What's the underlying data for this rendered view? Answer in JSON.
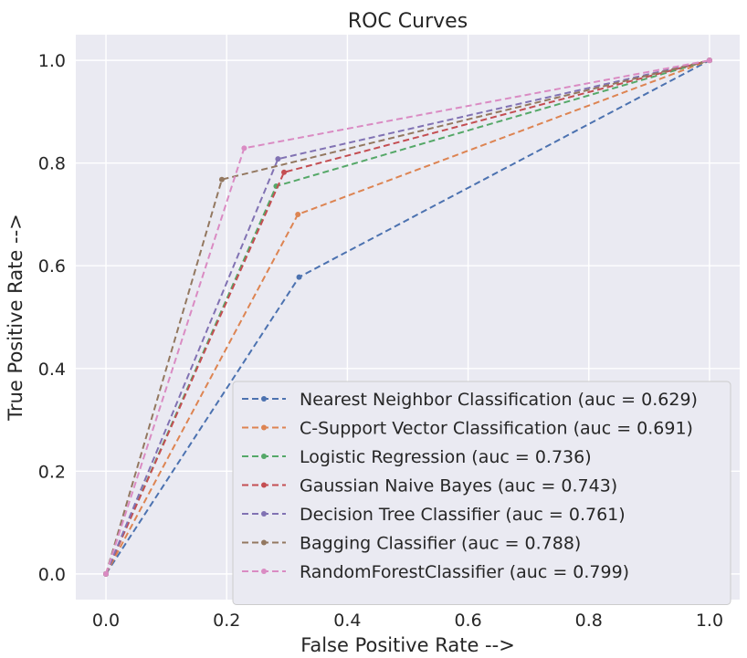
{
  "chart_data": {
    "type": "line",
    "title": "ROC Curves",
    "xlabel": "False Positive Rate -->",
    "ylabel": "True Positive Rate -->",
    "xlim": [
      -0.05,
      1.05
    ],
    "ylim": [
      -0.05,
      1.05
    ],
    "grid": true,
    "legend_position": "bottom-right",
    "xticks": [
      "0.0",
      "0.2",
      "0.4",
      "0.6",
      "0.8",
      "1.0"
    ],
    "xtick_values": [
      0.0,
      0.2,
      0.4,
      0.6,
      0.8,
      1.0
    ],
    "yticks": [
      "0.0",
      "0.2",
      "0.4",
      "0.6",
      "0.8",
      "1.0"
    ],
    "ytick_values": [
      0.0,
      0.2,
      0.4,
      0.6,
      0.8,
      1.0
    ],
    "series": [
      {
        "name": "Nearest Neighbor Classification (auc = 0.629)",
        "color": "#4c72b0",
        "x": [
          0.0,
          0.32,
          1.0
        ],
        "y": [
          0.0,
          0.578,
          1.0
        ]
      },
      {
        "name": "C-Support Vector Classification (auc = 0.691)",
        "color": "#dd8452",
        "x": [
          0.0,
          0.318,
          1.0
        ],
        "y": [
          0.0,
          0.7,
          1.0
        ]
      },
      {
        "name": "Logistic Regression (auc = 0.736)",
        "color": "#55a868",
        "x": [
          0.0,
          0.282,
          1.0
        ],
        "y": [
          0.0,
          0.755,
          1.0
        ]
      },
      {
        "name": "Gaussian Naive Bayes (auc = 0.743)",
        "color": "#c44e52",
        "x": [
          0.0,
          0.295,
          1.0
        ],
        "y": [
          0.0,
          0.782,
          1.0
        ]
      },
      {
        "name": "Decision Tree Classifier (auc = 0.761)",
        "color": "#8172b3",
        "x": [
          0.0,
          0.285,
          1.0
        ],
        "y": [
          0.0,
          0.808,
          1.0
        ]
      },
      {
        "name": "Bagging Classifier (auc = 0.788)",
        "color": "#937860",
        "x": [
          0.0,
          0.192,
          1.0
        ],
        "y": [
          0.0,
          0.768,
          1.0
        ]
      },
      {
        "name": "RandomForestClassifier (auc = 0.799)",
        "color": "#da8bc3",
        "x": [
          0.0,
          0.229,
          1.0
        ],
        "y": [
          0.0,
          0.829,
          1.0
        ]
      }
    ]
  }
}
